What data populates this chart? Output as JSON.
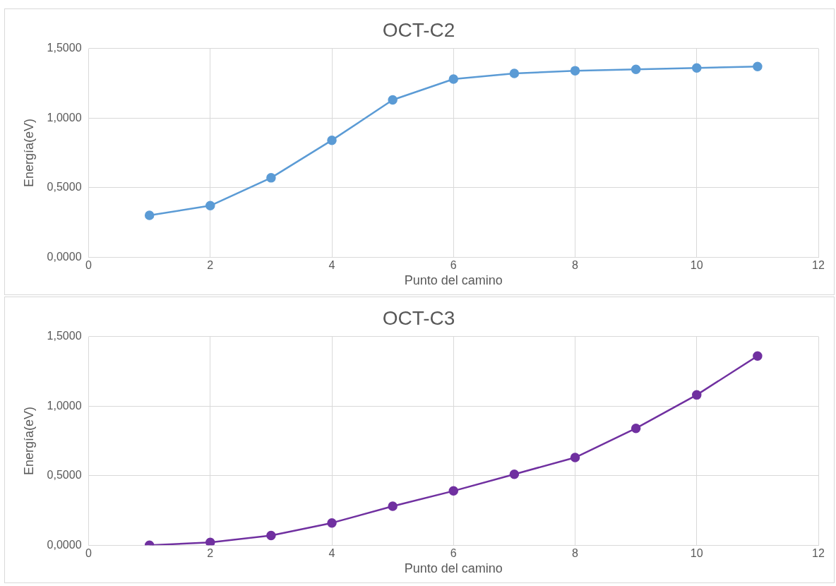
{
  "chart_data": [
    {
      "type": "line",
      "title": "OCT-C2",
      "xlabel": "Punto del camino",
      "ylabel": "Energía(eV)",
      "x": [
        1,
        2,
        3,
        4,
        5,
        6,
        7,
        8,
        9,
        10,
        11
      ],
      "series": [
        {
          "color": "#5b9bd5",
          "values": [
            0.3,
            0.37,
            0.57,
            0.84,
            1.13,
            1.28,
            1.32,
            1.34,
            1.35,
            1.36,
            1.37
          ]
        }
      ],
      "xlim": [
        0,
        12
      ],
      "xticks": [
        0,
        2,
        4,
        6,
        8,
        10,
        12
      ],
      "ylim": [
        0,
        1.5
      ],
      "yticks": [
        {
          "value": 0,
          "label": "0,0000"
        },
        {
          "value": 0.5,
          "label": "0,5000"
        },
        {
          "value": 1,
          "label": "1,0000"
        },
        {
          "value": 1.5,
          "label": "1,5000"
        }
      ],
      "grid": true,
      "legend": false,
      "marker": "circle",
      "line_style": "solid"
    },
    {
      "type": "line",
      "title": "OCT-C3",
      "xlabel": "Punto del camino",
      "ylabel": "Energía(eV)",
      "x": [
        1,
        2,
        3,
        4,
        5,
        6,
        7,
        8,
        9,
        10,
        11
      ],
      "series": [
        {
          "color": "#7030a0",
          "values": [
            0.0,
            0.02,
            0.07,
            0.16,
            0.28,
            0.39,
            0.51,
            0.63,
            0.84,
            1.08,
            1.36
          ]
        }
      ],
      "xlim": [
        0,
        12
      ],
      "xticks": [
        0,
        2,
        4,
        6,
        8,
        10,
        12
      ],
      "ylim": [
        0,
        1.5
      ],
      "yticks": [
        {
          "value": 0,
          "label": "0,0000"
        },
        {
          "value": 0.5,
          "label": "0,5000"
        },
        {
          "value": 1,
          "label": "1,0000"
        },
        {
          "value": 1.5,
          "label": "1,5000"
        }
      ],
      "grid": true,
      "legend": false,
      "marker": "circle",
      "line_style": "solid"
    }
  ]
}
